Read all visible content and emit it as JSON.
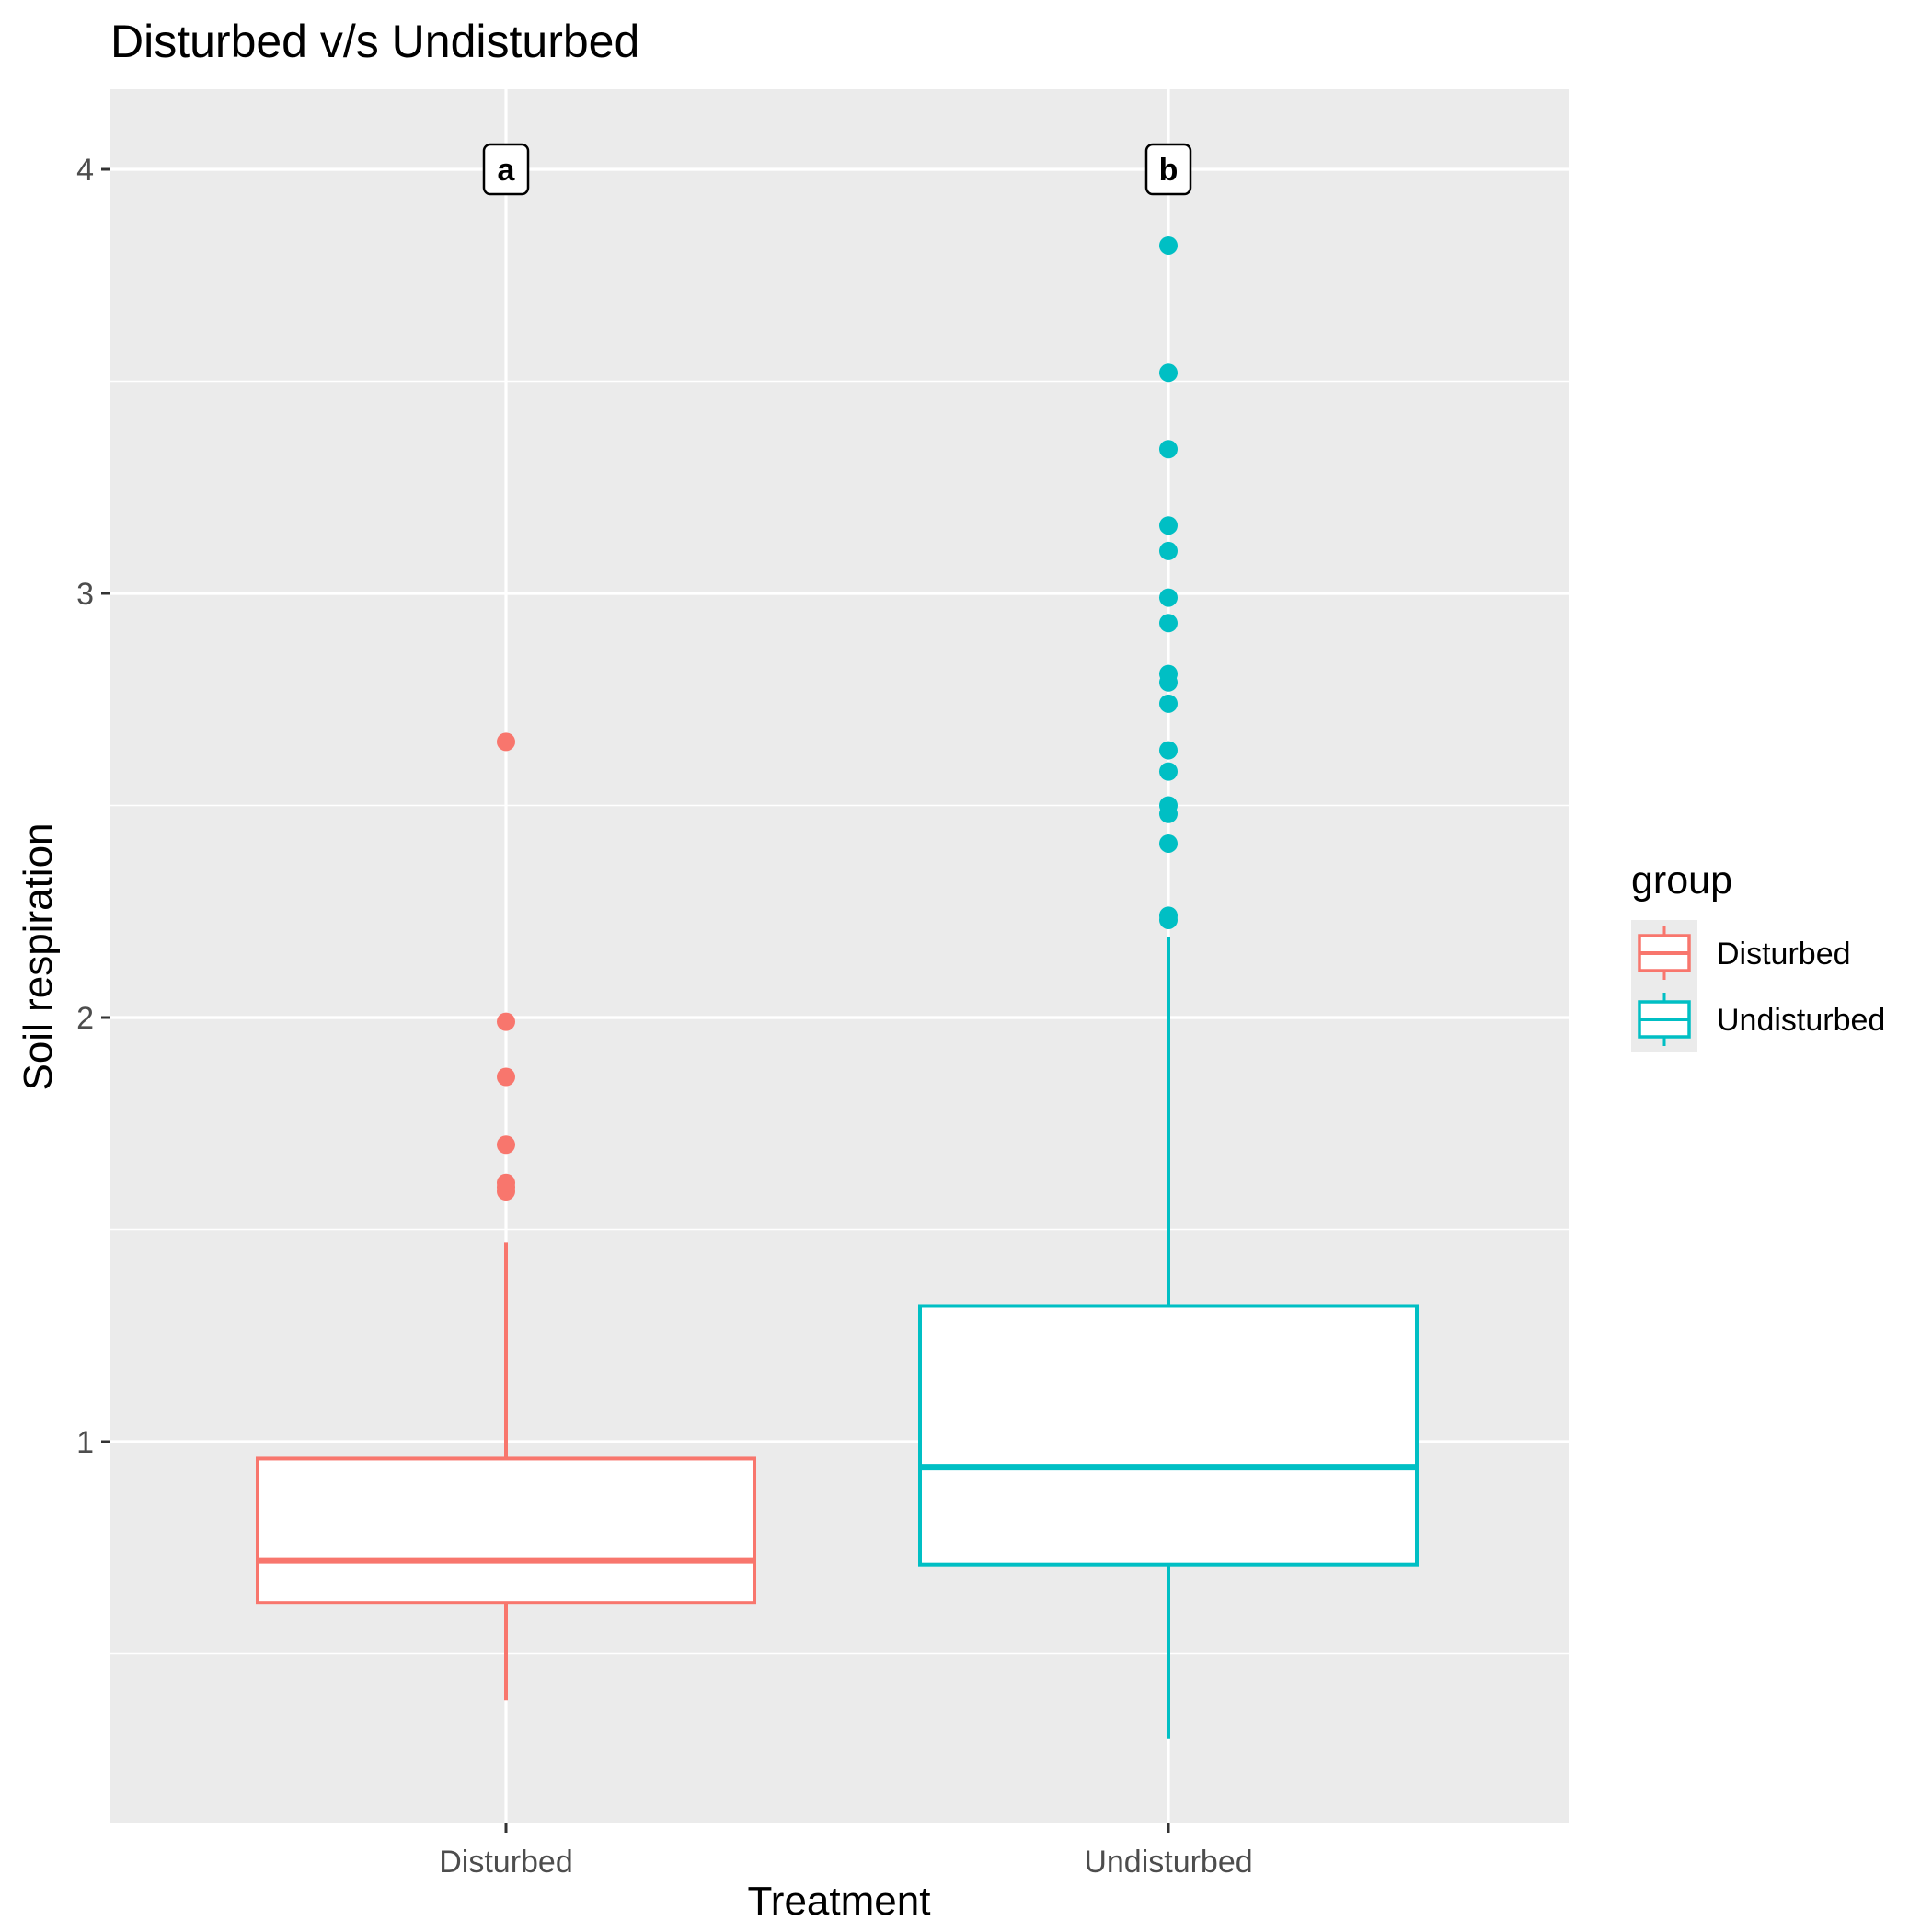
{
  "chart_data": {
    "type": "boxplot",
    "title": "Disturbed v/s Undisturbed",
    "xlabel": "Treatment",
    "ylabel": "Soil respiration",
    "ylim": [
      0.0,
      4.19
    ],
    "y_ticks": [
      1,
      2,
      3,
      4
    ],
    "y_tick_labels": [
      "1",
      "2",
      "3",
      "4"
    ],
    "y_minor_ticks": [
      0.5,
      1.5,
      2.5,
      3.5
    ],
    "grid": true,
    "legend": {
      "title": "group",
      "placement": "right",
      "entries": [
        "Disturbed",
        "Undisturbed"
      ]
    },
    "categories": [
      "Disturbed",
      "Undisturbed"
    ],
    "series": [
      {
        "name": "Disturbed",
        "color": "#F8766D",
        "whisker_low": 0.39,
        "q1": 0.62,
        "median": 0.72,
        "q3": 0.96,
        "whisker_high": 1.47,
        "outliers": [
          1.59,
          1.6,
          1.61,
          1.7,
          1.86,
          1.99,
          2.65
        ],
        "annotation": "a"
      },
      {
        "name": "Undisturbed",
        "color": "#00BFC4",
        "whisker_low": 0.3,
        "q1": 0.71,
        "median": 0.94,
        "q3": 1.32,
        "whisker_high": 2.19,
        "outliers": [
          2.23,
          2.24,
          2.41,
          2.48,
          2.5,
          2.58,
          2.63,
          2.74,
          2.79,
          2.81,
          2.93,
          2.99,
          3.1,
          3.16,
          3.34,
          3.52,
          3.82
        ],
        "annotation": "b"
      }
    ],
    "annotation_y": 4.0
  }
}
